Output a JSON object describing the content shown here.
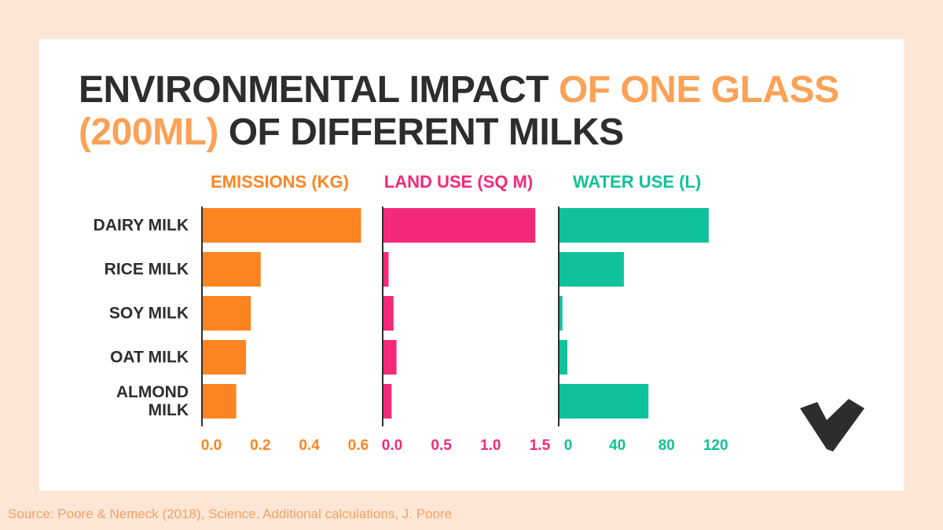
{
  "title_parts": [
    {
      "text": "ENVIRONMENTAL IMPACT ",
      "color": "#2b2d2f"
    },
    {
      "text": "OF ONE GLASS (200ML)",
      "color": "#fba257"
    },
    {
      "text": " OF DIFFERENT MILKS",
      "color": "#2b2d2f"
    }
  ],
  "source": "Source: Poore & Nemeck (2018), Science. Additional calculations, J. Poore",
  "chart_data": [
    {
      "type": "hbar",
      "title": "EMISSIONS (KG)",
      "color": "#fd8521",
      "categories": [
        "DAIRY MILK",
        "RICE MILK",
        "SOY MILK",
        "OAT MILK",
        "ALMOND MILK"
      ],
      "values": [
        0.65,
        0.24,
        0.2,
        0.18,
        0.14
      ],
      "xlim": [
        0,
        0.7
      ],
      "xticks": [
        {
          "value": 0,
          "label": "0.0"
        },
        0.2,
        0.4,
        0.6
      ]
    },
    {
      "type": "hbar",
      "title": "LAND USE (SQ M)",
      "color": "#f4297a",
      "values": [
        1.55,
        0.06,
        0.11,
        0.14,
        0.09
      ],
      "xlim": [
        0,
        1.7
      ],
      "xticks": [
        {
          "value": 0,
          "label": "0.0"
        },
        0.5,
        {
          "value": 1,
          "label": "1.0"
        },
        1.5
      ]
    },
    {
      "type": "hbar",
      "title": "WATER USE (L)",
      "color": "#10c29b",
      "values": [
        122,
        53,
        3,
        7,
        73
      ],
      "xlim": [
        0,
        140
      ],
      "xticks": [
        0,
        40,
        80,
        120
      ]
    }
  ]
}
